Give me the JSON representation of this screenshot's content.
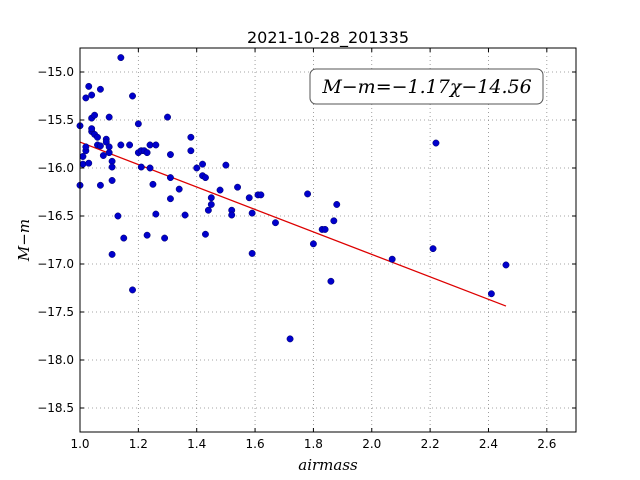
{
  "chart_data": {
    "type": "scatter",
    "title": "2021-10-28_201335",
    "xlabel": "airmass",
    "ylabel": "M−m",
    "annotation": "M−m=−1.17χ−14.56",
    "xlim": [
      1.0,
      2.7
    ],
    "ylim": [
      -18.75,
      -14.75
    ],
    "y_inverted": true,
    "grid": true,
    "xticks": [
      "1.0",
      "1.2",
      "1.4",
      "1.6",
      "1.8",
      "2.0",
      "2.2",
      "2.4",
      "2.6"
    ],
    "yticks": [
      "−15.0",
      "−15.5",
      "−16.0",
      "−16.5",
      "−17.0",
      "−17.5",
      "−18.0",
      "−18.5"
    ],
    "xtick_values": [
      1.0,
      1.2,
      1.4,
      1.6,
      1.8,
      2.0,
      2.2,
      2.4,
      2.6
    ],
    "ytick_values": [
      -15.0,
      -15.5,
      -16.0,
      -16.5,
      -17.0,
      -17.5,
      -18.0,
      -18.5
    ],
    "colors": {
      "points": "#0000cc",
      "fit": "#dd0000",
      "grid": "#888888"
    },
    "fit": {
      "slope": -1.17,
      "intercept": -14.56,
      "x_range": [
        1.0,
        2.46
      ]
    },
    "points": [
      [
        1.0,
        -16.18
      ],
      [
        1.0,
        -15.56
      ],
      [
        1.01,
        -15.96
      ],
      [
        1.01,
        -15.88
      ],
      [
        1.02,
        -15.82
      ],
      [
        1.02,
        -15.27
      ],
      [
        1.02,
        -15.78
      ],
      [
        1.03,
        -15.15
      ],
      [
        1.03,
        -15.95
      ],
      [
        1.04,
        -15.24
      ],
      [
        1.04,
        -15.48
      ],
      [
        1.04,
        -15.62
      ],
      [
        1.04,
        -15.59
      ],
      [
        1.05,
        -15.65
      ],
      [
        1.05,
        -15.45
      ],
      [
        1.06,
        -15.68
      ],
      [
        1.06,
        -15.76
      ],
      [
        1.07,
        -15.18
      ],
      [
        1.07,
        -16.18
      ],
      [
        1.07,
        -15.77
      ],
      [
        1.08,
        -15.87
      ],
      [
        1.09,
        -15.7
      ],
      [
        1.09,
        -15.73
      ],
      [
        1.1,
        -15.78
      ],
      [
        1.1,
        -15.84
      ],
      [
        1.1,
        -15.47
      ],
      [
        1.11,
        -15.93
      ],
      [
        1.11,
        -15.99
      ],
      [
        1.11,
        -16.13
      ],
      [
        1.11,
        -16.9
      ],
      [
        1.13,
        -16.5
      ],
      [
        1.14,
        -14.85
      ],
      [
        1.14,
        -15.76
      ],
      [
        1.15,
        -16.73
      ],
      [
        1.17,
        -15.76
      ],
      [
        1.18,
        -17.27
      ],
      [
        1.18,
        -15.25
      ],
      [
        1.2,
        -15.54
      ],
      [
        1.2,
        -15.84
      ],
      [
        1.21,
        -15.82
      ],
      [
        1.21,
        -15.99
      ],
      [
        1.22,
        -15.82
      ],
      [
        1.23,
        -16.7
      ],
      [
        1.23,
        -15.84
      ],
      [
        1.24,
        -15.76
      ],
      [
        1.24,
        -16.0
      ],
      [
        1.25,
        -16.17
      ],
      [
        1.26,
        -16.48
      ],
      [
        1.26,
        -15.76
      ],
      [
        1.29,
        -16.73
      ],
      [
        1.3,
        -15.47
      ],
      [
        1.31,
        -15.86
      ],
      [
        1.31,
        -16.1
      ],
      [
        1.31,
        -16.32
      ],
      [
        1.34,
        -16.22
      ],
      [
        1.36,
        -16.49
      ],
      [
        1.38,
        -15.68
      ],
      [
        1.38,
        -15.82
      ],
      [
        1.4,
        -16.0
      ],
      [
        1.42,
        -16.08
      ],
      [
        1.42,
        -15.96
      ],
      [
        1.43,
        -16.69
      ],
      [
        1.43,
        -16.1
      ],
      [
        1.44,
        -16.44
      ],
      [
        1.45,
        -16.38
      ],
      [
        1.45,
        -16.31
      ],
      [
        1.48,
        -16.23
      ],
      [
        1.5,
        -15.97
      ],
      [
        1.52,
        -16.44
      ],
      [
        1.52,
        -16.49
      ],
      [
        1.54,
        -16.2
      ],
      [
        1.58,
        -16.31
      ],
      [
        1.59,
        -16.47
      ],
      [
        1.59,
        -16.89
      ],
      [
        1.61,
        -16.28
      ],
      [
        1.62,
        -16.28
      ],
      [
        1.67,
        -16.57
      ],
      [
        1.72,
        -17.78
      ],
      [
        1.78,
        -16.27
      ],
      [
        1.8,
        -16.79
      ],
      [
        1.83,
        -16.64
      ],
      [
        1.84,
        -16.64
      ],
      [
        1.86,
        -17.18
      ],
      [
        1.87,
        -16.55
      ],
      [
        1.88,
        -16.38
      ],
      [
        2.07,
        -16.95
      ],
      [
        2.21,
        -16.84
      ],
      [
        2.22,
        -15.74
      ],
      [
        2.41,
        -17.31
      ],
      [
        2.46,
        -17.01
      ]
    ]
  }
}
